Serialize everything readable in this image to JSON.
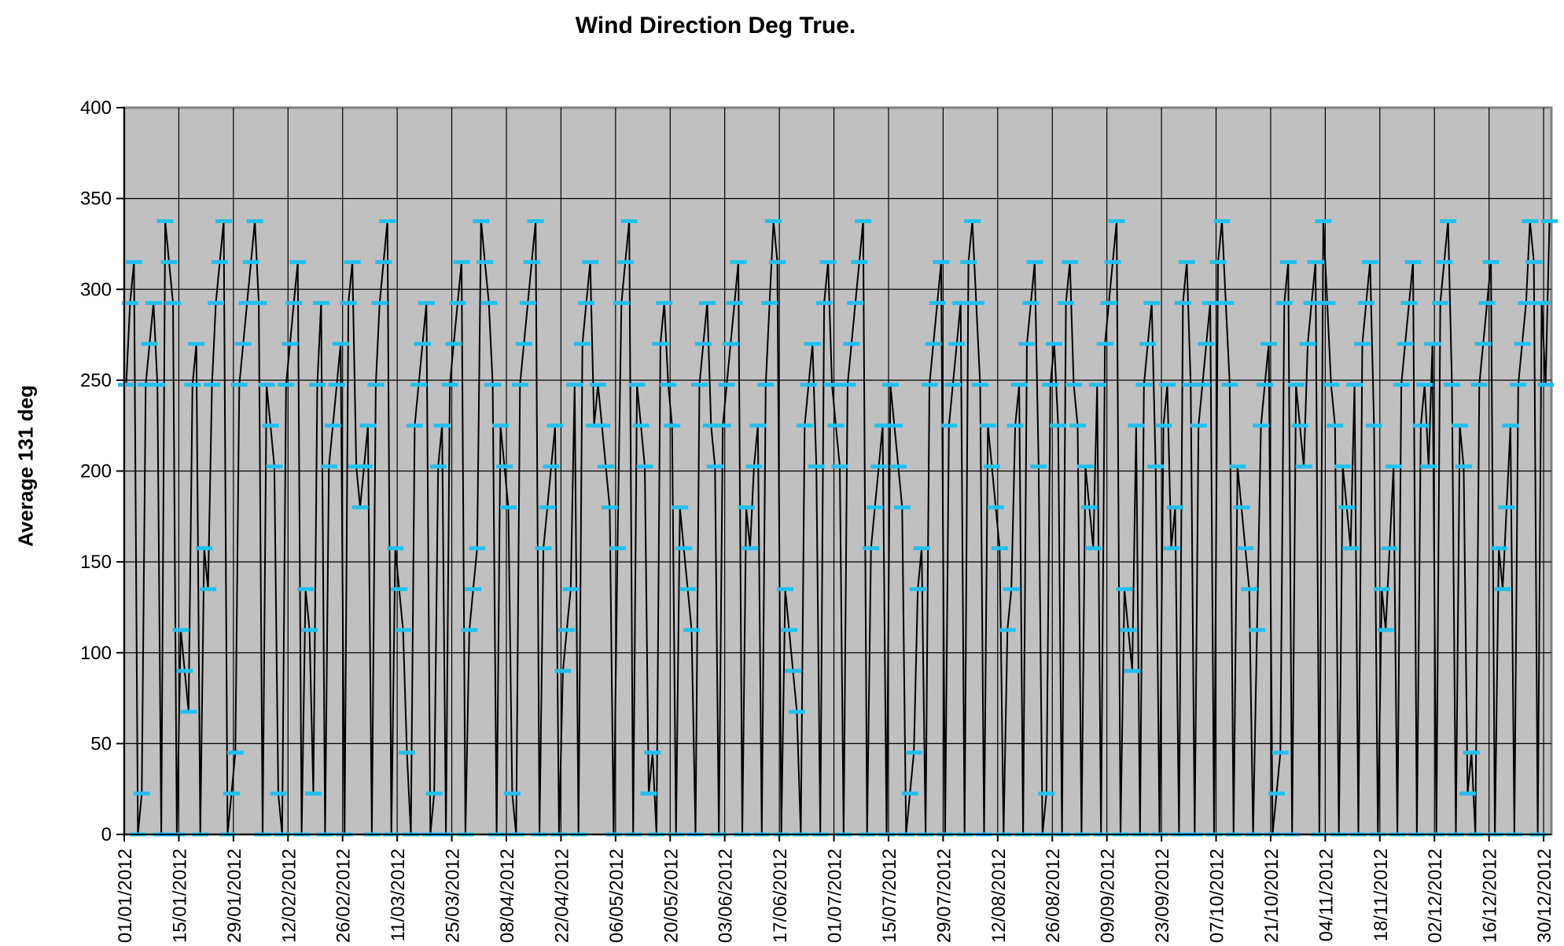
{
  "chart_data": {
    "type": "line",
    "title": "Wind Direction Deg True.",
    "xlabel": "",
    "ylabel": "Average 131 deg",
    "ylim": [
      0,
      400
    ],
    "yticks": [
      0,
      50,
      100,
      150,
      200,
      250,
      300,
      350,
      400
    ],
    "x_range": [
      "01/01/2012",
      "31/12/2012"
    ],
    "x_tick_interval_days": 14,
    "x_tick_labels": [
      "01/01/2012",
      "15/01/2012",
      "29/01/2012",
      "12/02/2012",
      "26/02/2012",
      "11/03/2012",
      "25/03/2012",
      "08/04/2012",
      "22/04/2012",
      "06/05/2012",
      "20/05/2012",
      "03/06/2012",
      "17/06/2012",
      "01/07/2012",
      "15/07/2012",
      "29/07/2012",
      "12/08/2012",
      "26/08/2012",
      "09/09/2012",
      "23/09/2012",
      "07/10/2012",
      "21/10/2012",
      "04/11/2012",
      "18/11/2012",
      "02/12/2012",
      "16/12/2012",
      "30/12/2012"
    ],
    "quantization_step_deg": 22.5,
    "grid": {
      "visible": true,
      "color": "#000000",
      "y_interval": 50,
      "x_interval_days": 14
    },
    "plot_bg": "#C0C0C0",
    "plot_border": "#808080",
    "legend": "none",
    "series": [
      {
        "name": "Wind Direction Deg True",
        "line_color": "#000000",
        "marker_color": "#20C0F0",
        "marker_style": "horizontal-dash",
        "values": [
          247.5,
          292.5,
          315,
          0,
          22.5,
          247.5,
          270,
          292.5,
          247.5,
          0,
          337.5,
          315,
          292.5,
          0,
          112.5,
          90,
          67.5,
          247.5,
          270,
          0,
          157.5,
          135,
          247.5,
          292.5,
          315,
          337.5,
          0,
          22.5,
          45,
          247.5,
          270,
          292.5,
          315,
          337.5,
          292.5,
          0,
          247.5,
          225,
          202.5,
          22.5,
          0,
          247.5,
          270,
          292.5,
          315,
          0,
          135,
          112.5,
          22.5,
          247.5,
          292.5,
          0,
          202.5,
          225,
          247.5,
          270,
          0,
          292.5,
          315,
          202.5,
          180,
          202.5,
          225,
          0,
          247.5,
          292.5,
          315,
          337.5,
          0,
          157.5,
          135,
          112.5,
          45,
          0,
          225,
          247.5,
          270,
          292.5,
          0,
          22.5,
          202.5,
          225,
          0,
          247.5,
          270,
          292.5,
          315,
          0,
          112.5,
          135,
          157.5,
          337.5,
          315,
          292.5,
          247.5,
          0,
          225,
          202.5,
          180,
          22.5,
          0,
          247.5,
          270,
          292.5,
          315,
          337.5,
          0,
          157.5,
          180,
          202.5,
          225,
          0,
          90,
          112.5,
          135,
          247.5,
          0,
          270,
          292.5,
          315,
          225,
          247.5,
          225,
          202.5,
          180,
          0,
          157.5,
          292.5,
          315,
          337.5,
          0,
          247.5,
          225,
          202.5,
          22.5,
          45,
          0,
          270,
          292.5,
          247.5,
          225,
          0,
          180,
          157.5,
          135,
          112.5,
          0,
          247.5,
          270,
          292.5,
          225,
          202.5,
          0,
          225,
          247.5,
          270,
          292.5,
          315,
          0,
          180,
          157.5,
          202.5,
          225,
          0,
          247.5,
          292.5,
          337.5,
          315,
          0,
          135,
          112.5,
          90,
          67.5,
          0,
          225,
          247.5,
          270,
          202.5,
          0,
          292.5,
          315,
          247.5,
          225,
          202.5,
          0,
          247.5,
          270,
          292.5,
          315,
          337.5,
          0,
          157.5,
          180,
          202.5,
          225,
          0,
          247.5,
          225,
          202.5,
          180,
          0,
          22.5,
          45,
          135,
          157.5,
          0,
          247.5,
          270,
          292.5,
          315,
          0,
          225,
          247.5,
          270,
          292.5,
          0,
          315,
          337.5,
          292.5,
          247.5,
          0,
          225,
          202.5,
          180,
          157.5,
          0,
          112.5,
          135,
          225,
          247.5,
          0,
          270,
          292.5,
          315,
          202.5,
          0,
          22.5,
          247.5,
          270,
          225,
          0,
          292.5,
          315,
          247.5,
          225,
          0,
          202.5,
          180,
          157.5,
          247.5,
          0,
          270,
          292.5,
          315,
          337.5,
          0,
          135,
          112.5,
          90,
          225,
          0,
          247.5,
          270,
          292.5,
          202.5,
          0,
          225,
          247.5,
          157.5,
          180,
          0,
          292.5,
          315,
          247.5,
          0,
          225,
          247.5,
          270,
          292.5,
          0,
          315,
          337.5,
          292.5,
          247.5,
          0,
          202.5,
          180,
          157.5,
          135,
          0,
          112.5,
          225,
          247.5,
          270,
          0,
          22.5,
          45,
          292.5,
          315,
          0,
          247.5,
          225,
          202.5,
          270,
          292.5,
          315,
          0,
          337.5,
          292.5,
          247.5,
          225,
          0,
          202.5,
          180,
          157.5,
          247.5,
          0,
          270,
          292.5,
          315,
          225,
          0,
          135,
          112.5,
          157.5,
          202.5,
          0,
          247.5,
          270,
          292.5,
          315,
          0,
          225,
          247.5,
          202.5,
          270,
          0,
          292.5,
          315,
          337.5,
          247.5,
          0,
          225,
          202.5,
          22.5,
          45,
          0,
          247.5,
          270,
          292.5,
          315,
          0,
          157.5,
          135,
          180,
          225,
          0,
          247.5,
          270,
          292.5,
          337.5,
          315,
          0,
          292.5,
          247.5,
          337.5
        ]
      }
    ]
  }
}
